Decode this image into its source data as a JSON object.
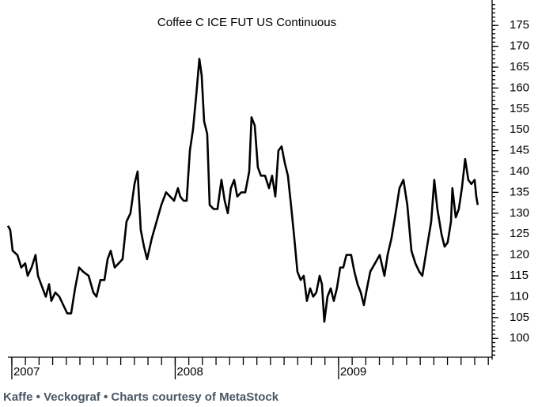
{
  "chart_data": {
    "type": "line",
    "title": "Coffee C ICE FUT US Continuous",
    "footer": "Kaffe • Veckograf • Charts courtesy of MetaStock",
    "color": "#000000",
    "x": [
      2006.976,
      2006.99,
      2007.005,
      2007.034,
      2007.058,
      2007.082,
      2007.097,
      2007.121,
      2007.145,
      2007.16,
      2007.179,
      2007.208,
      2007.228,
      2007.242,
      2007.266,
      2007.291,
      2007.315,
      2007.339,
      2007.363,
      2007.387,
      2007.412,
      2007.436,
      2007.47,
      2007.499,
      2007.518,
      2007.542,
      2007.567,
      2007.586,
      2007.605,
      2007.63,
      2007.654,
      2007.678,
      2007.702,
      2007.726,
      2007.751,
      2007.77,
      2007.789,
      2007.809,
      2007.828,
      2007.857,
      2007.886,
      2007.915,
      2007.944,
      2007.969,
      2007.993,
      2008.017,
      2008.031,
      2008.051,
      2008.07,
      2008.09,
      2008.109,
      2008.128,
      2008.148,
      2008.162,
      2008.177,
      2008.196,
      2008.211,
      2008.235,
      2008.259,
      2008.283,
      2008.303,
      2008.322,
      2008.341,
      2008.361,
      2008.38,
      2008.404,
      2008.429,
      2008.453,
      2008.467,
      2008.487,
      2008.506,
      2008.525,
      2008.55,
      2008.574,
      2008.593,
      2008.613,
      2008.632,
      2008.651,
      2008.671,
      2008.69,
      2008.709,
      2008.729,
      2008.748,
      2008.768,
      2008.787,
      2008.806,
      2008.826,
      2008.845,
      2008.864,
      2008.884,
      2008.898,
      2008.913,
      2008.932,
      2008.952,
      2008.971,
      2008.99,
      2009.01,
      2009.029,
      2009.048,
      2009.077,
      2009.097,
      2009.116,
      2009.136,
      2009.155,
      2009.174,
      2009.194,
      2009.223,
      2009.252,
      2009.281,
      2009.3,
      2009.324,
      2009.349,
      2009.373,
      2009.397,
      2009.421,
      2009.446,
      2009.47,
      2009.494,
      2009.513,
      2009.542,
      2009.567,
      2009.586,
      2009.605,
      2009.63,
      2009.649,
      2009.668,
      2009.688,
      2009.697,
      2009.717,
      2009.736,
      2009.755,
      2009.775,
      2009.794,
      2009.813,
      2009.833,
      2009.843,
      2009.852
    ],
    "values": [
      127,
      126,
      121,
      120,
      117,
      118,
      115,
      117,
      120,
      115,
      113,
      110,
      113,
      109,
      111,
      110,
      108,
      106,
      106,
      112,
      117,
      116,
      115,
      111,
      110,
      114,
      114,
      119,
      121,
      117,
      118,
      119,
      128,
      130,
      137,
      140,
      126,
      122,
      119,
      124,
      128,
      132,
      135,
      134,
      133,
      136,
      134,
      133,
      133,
      145,
      150,
      158,
      167,
      163,
      152,
      149,
      132,
      131,
      131,
      138,
      133,
      130,
      136,
      138,
      134,
      135,
      135,
      140,
      153,
      151,
      141,
      139,
      139,
      136,
      139,
      134,
      145,
      146,
      142,
      139,
      132,
      124,
      116,
      114,
      115,
      109,
      112,
      110,
      111,
      115,
      113,
      104,
      110,
      112,
      109,
      112,
      117,
      117,
      120,
      120,
      116,
      113,
      111,
      108,
      112,
      116,
      118,
      120,
      115,
      120,
      124,
      130,
      136,
      138,
      132,
      121,
      118,
      116,
      115,
      122,
      128,
      138,
      131,
      125,
      122,
      123,
      128,
      136,
      129,
      131,
      136,
      143,
      138,
      137,
      138,
      134,
      132
    ],
    "xlim": [
      2006.976,
      2009.94
    ],
    "xticks": [
      2007,
      2008,
      2009
    ],
    "ylim": [
      95.5,
      179.2
    ],
    "yticks": [
      100,
      105,
      110,
      115,
      120,
      125,
      130,
      135,
      140,
      145,
      150,
      155,
      160,
      165,
      170,
      175
    ]
  }
}
